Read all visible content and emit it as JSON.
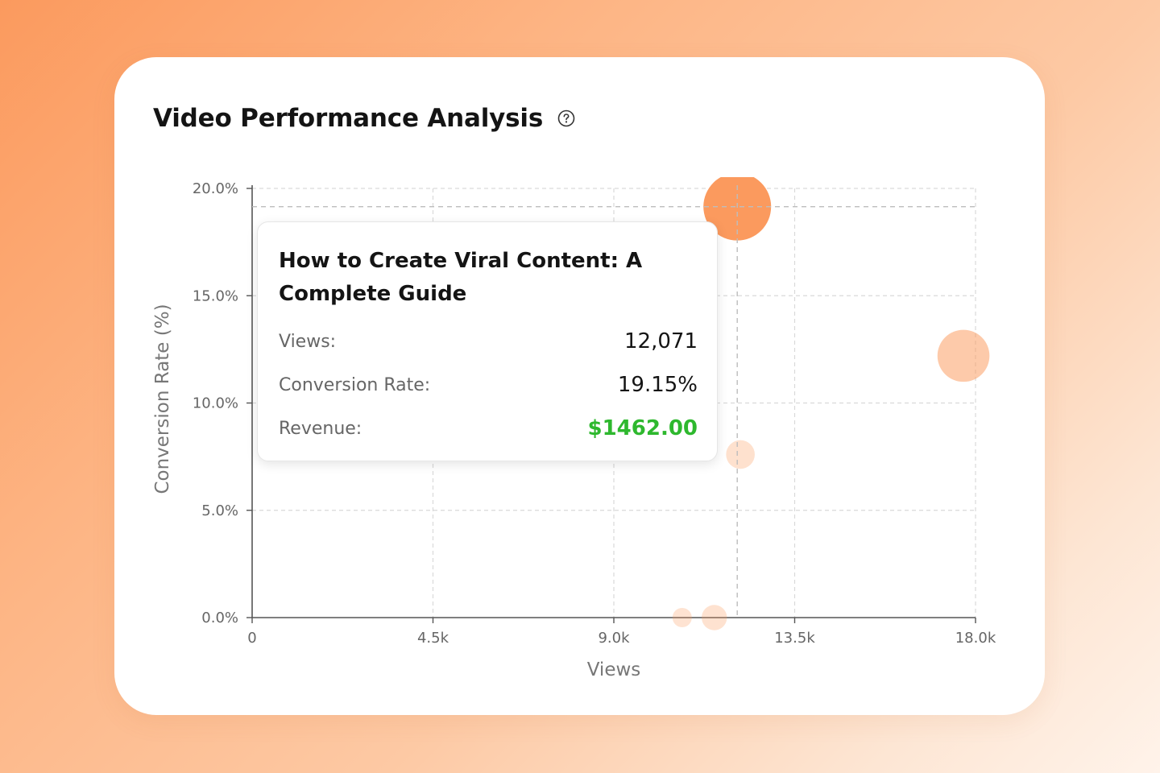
{
  "card": {
    "title": "Video Performance Analysis",
    "help_icon": "question-circle-icon"
  },
  "chart_data": {
    "type": "scatter",
    "title": "Video Performance Analysis",
    "xlabel": "Views",
    "ylabel": "Conversion Rate (%)",
    "xlim": [
      0,
      18000
    ],
    "ylim": [
      0,
      20
    ],
    "x_ticks": [
      {
        "value": 0,
        "label": "0"
      },
      {
        "value": 4500,
        "label": "4.5k"
      },
      {
        "value": 9000,
        "label": "9.0k"
      },
      {
        "value": 13500,
        "label": "13.5k"
      },
      {
        "value": 18000,
        "label": "18.0k"
      }
    ],
    "y_ticks": [
      {
        "value": 0,
        "label": "0.0%"
      },
      {
        "value": 5,
        "label": "5.0%"
      },
      {
        "value": 10,
        "label": "10.0%"
      },
      {
        "value": 15,
        "label": "15.0%"
      },
      {
        "value": 20,
        "label": "20.0%"
      }
    ],
    "grid": true,
    "point_color": "#fb9a5e",
    "points": [
      {
        "x": 12071,
        "y": 19.15,
        "revenue": 1462.0,
        "active": true
      },
      {
        "x": 17700,
        "y": 12.2,
        "revenue": 740
      },
      {
        "x": 12150,
        "y": 7.6,
        "revenue": 180
      },
      {
        "x": 10700,
        "y": 0.0,
        "revenue": 130
      },
      {
        "x": 11500,
        "y": 0.0,
        "revenue": 150
      }
    ],
    "active_crosshair": {
      "x": 12071,
      "y": 19.15
    }
  },
  "tooltip": {
    "title": "How to Create Viral Content: A Complete Guide",
    "views_label": "Views:",
    "views_value": "12,071",
    "conversion_label": "Conversion Rate:",
    "conversion_value": "19.15%",
    "revenue_label": "Revenue:",
    "revenue_value": "$1462.00",
    "revenue_color": "#2eb82e"
  }
}
